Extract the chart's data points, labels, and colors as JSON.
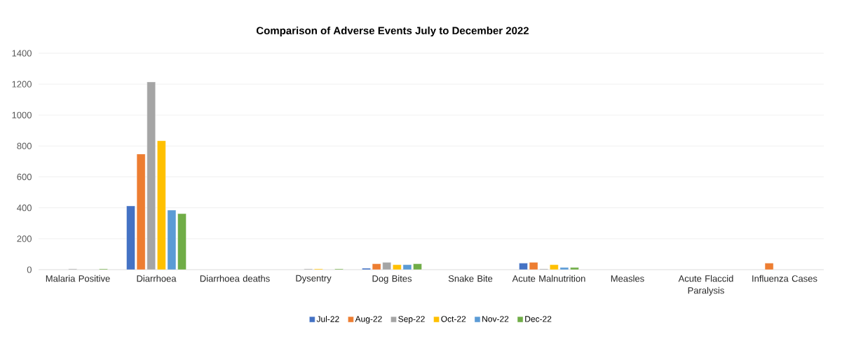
{
  "chart_data": {
    "type": "bar",
    "title": "Comparison of Adverse Events July to December 2022",
    "categories": [
      "Malaria Positive",
      "Diarrhoea",
      "Diarrhoea deaths",
      "Dysentry",
      "Dog Bites",
      "Snake Bite",
      "Acute Malnutrition",
      "Measles",
      "Acute Flaccid Paralysis",
      "Influenza Cases"
    ],
    "series": [
      {
        "name": "Jul-22",
        "color": "#4472c4",
        "values": [
          null,
          412,
          null,
          null,
          9,
          null,
          42,
          null,
          null,
          null
        ]
      },
      {
        "name": "Aug-22",
        "color": "#ed7d31",
        "values": [
          null,
          748,
          null,
          null,
          38,
          null,
          47,
          null,
          null,
          42
        ]
      },
      {
        "name": "Sep-22",
        "color": "#a5a5a5",
        "values": [
          5,
          1214,
          null,
          5,
          47,
          null,
          5,
          null,
          null,
          null
        ]
      },
      {
        "name": "Oct-22",
        "color": "#ffc000",
        "values": [
          null,
          834,
          null,
          5,
          32,
          null,
          32,
          null,
          null,
          null
        ]
      },
      {
        "name": "Nov-22",
        "color": "#5b9bd5",
        "values": [
          null,
          385,
          null,
          null,
          32,
          null,
          14,
          null,
          null,
          null
        ]
      },
      {
        "name": "Dec-22",
        "color": "#70ad47",
        "values": [
          5,
          362,
          null,
          5,
          38,
          null,
          14,
          null,
          null,
          null
        ]
      }
    ],
    "ylim": [
      0,
      1400
    ],
    "yticks": [
      0,
      200,
      400,
      600,
      800,
      1000,
      1200,
      1400
    ],
    "grid": "y",
    "legend": "bottom"
  }
}
